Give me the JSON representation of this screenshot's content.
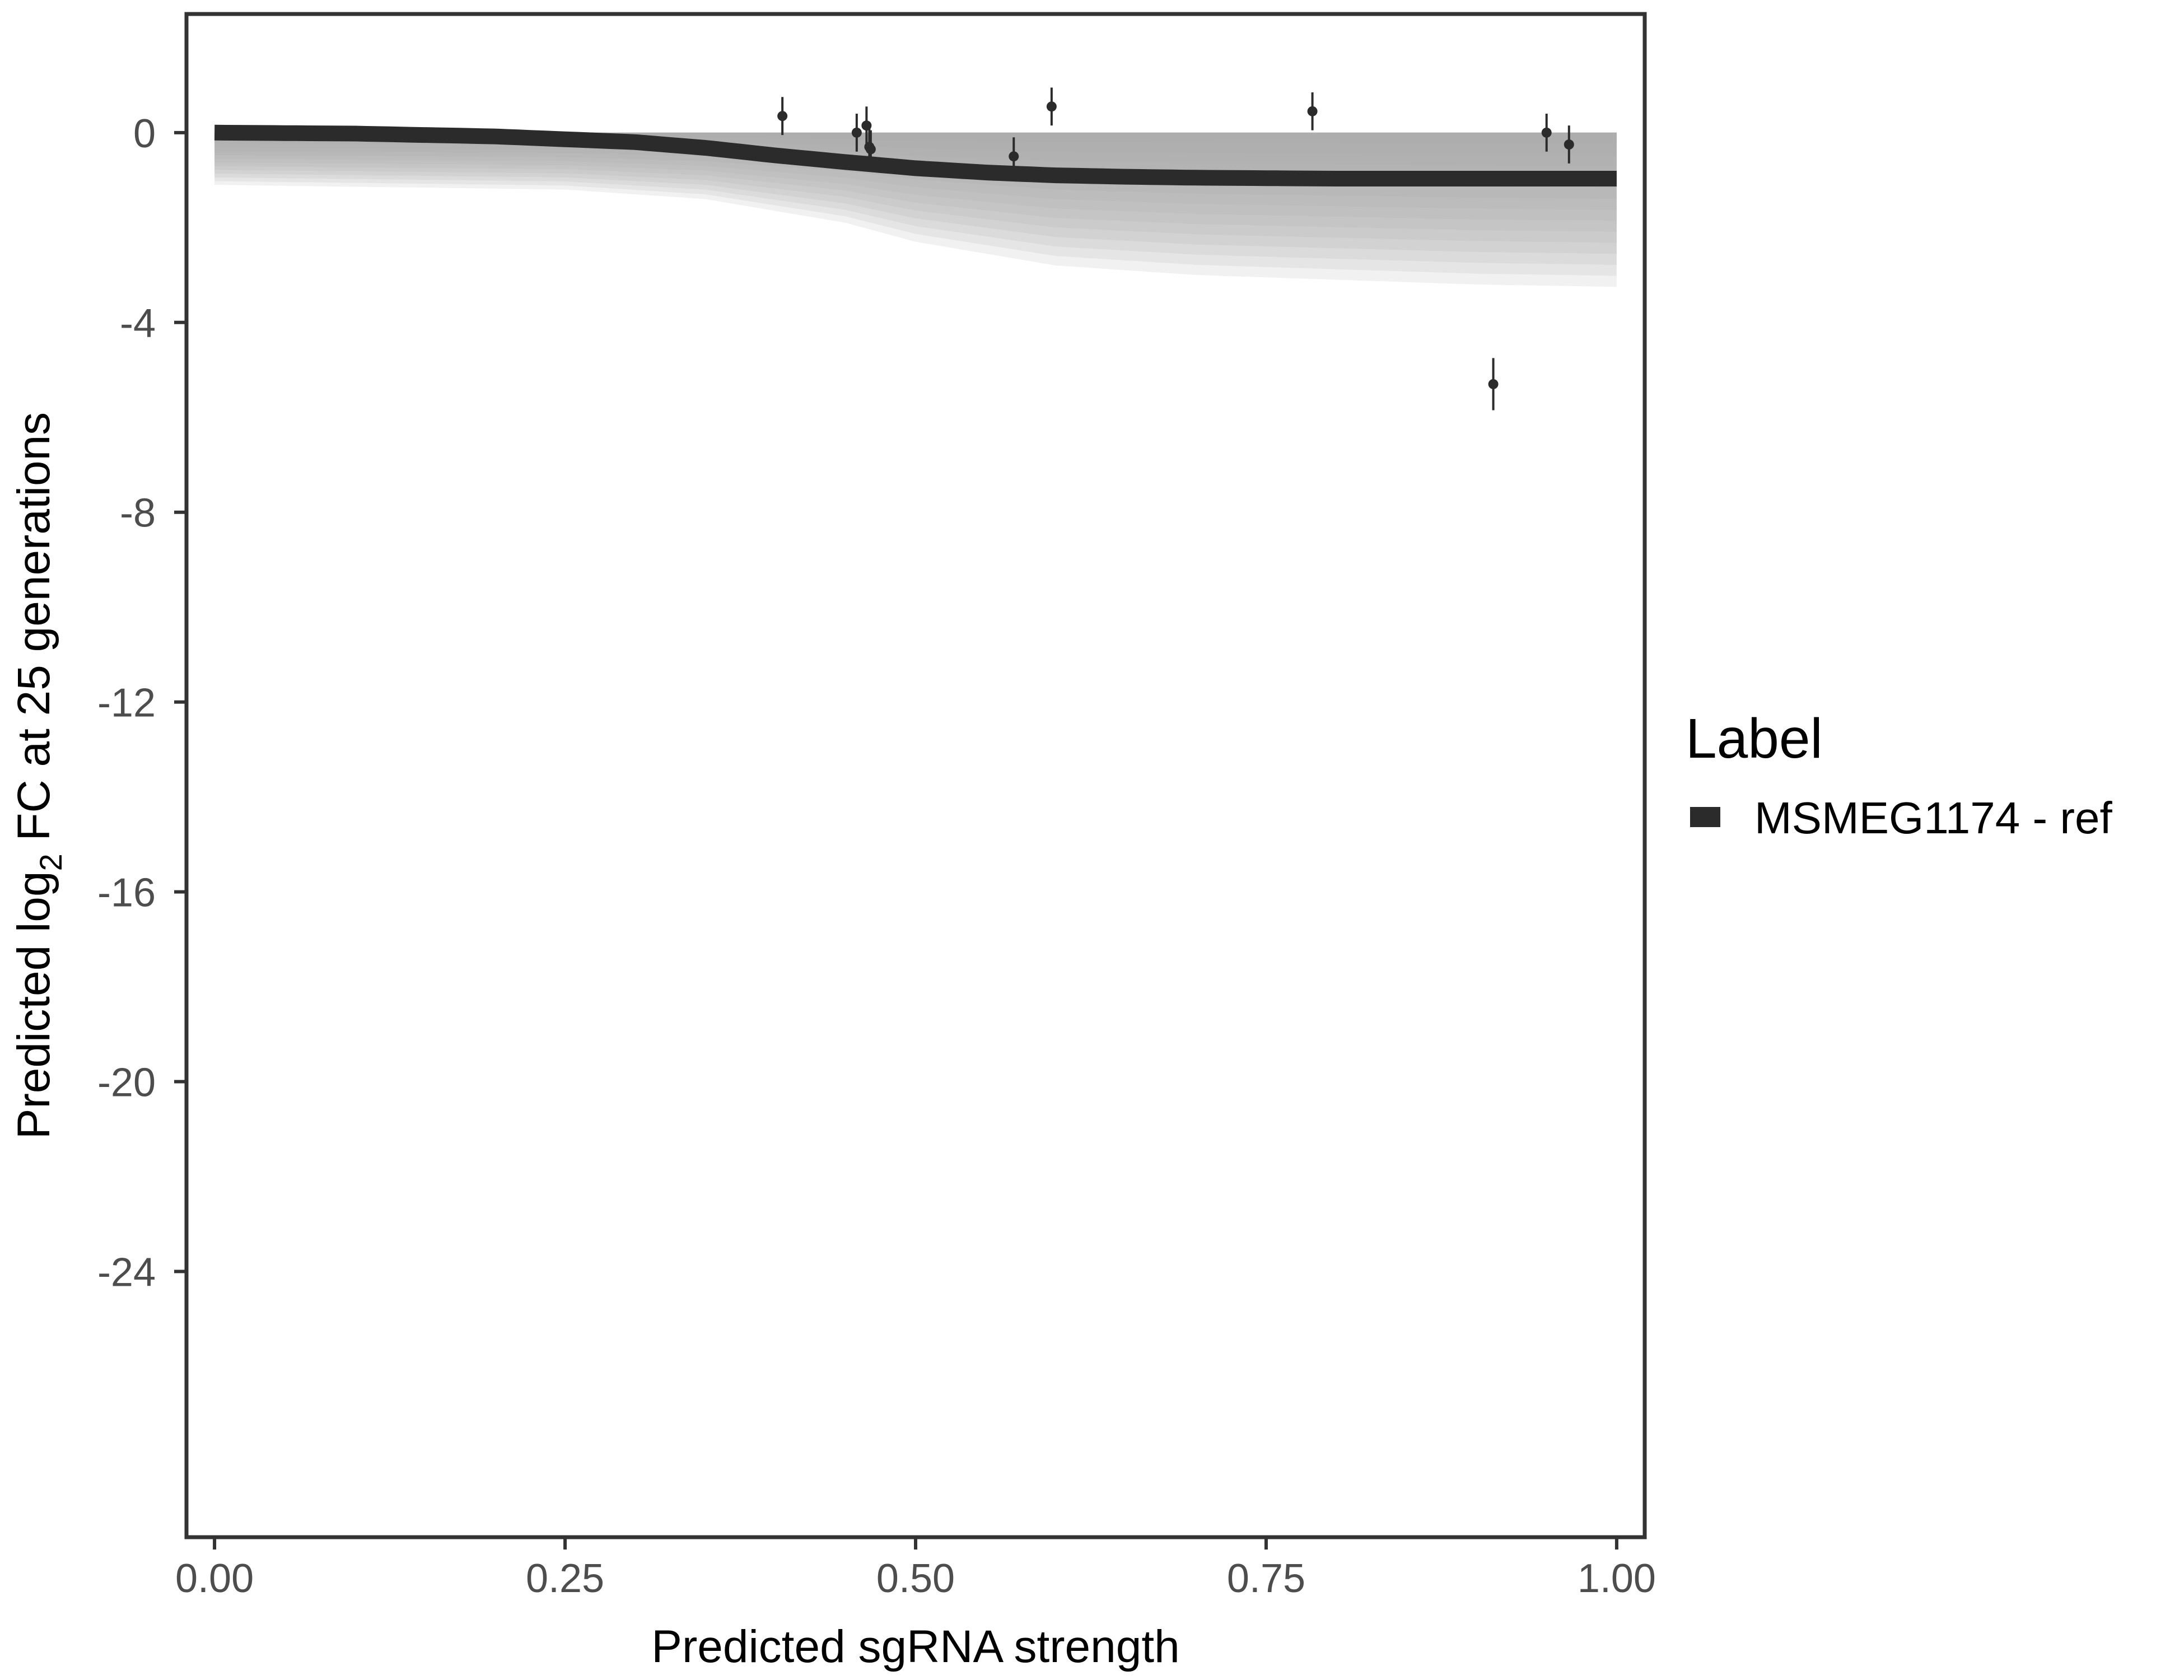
{
  "chart_data": {
    "type": "line",
    "xlabel": "Predicted sgRNA strength",
    "ylabel_prefix": "Predicted  log",
    "ylabel_sub": "2",
    "ylabel_suffix": " FC at 25 generations",
    "xlim": [
      -0.02,
      1.02
    ],
    "ylim": [
      -29.6,
      2.5
    ],
    "xticks": [
      0,
      0.25,
      0.5,
      0.75,
      1.0
    ],
    "xtick_labels": [
      "0.00",
      "0.25",
      "0.50",
      "0.75",
      "1.00"
    ],
    "yticks": [
      0,
      -4,
      -8,
      -12,
      -16,
      -20,
      -24
    ],
    "ytick_labels": [
      "0",
      "-4",
      "-8",
      "-12",
      "-16",
      "-20",
      "-24"
    ],
    "grid": false,
    "legend": {
      "title": "Label",
      "position": "right",
      "entries": [
        {
          "label": "MSMEG1174 - ref",
          "color": "#2b2b2b"
        }
      ]
    },
    "fit_curve": {
      "name": "MSMEG1174 - ref",
      "color": "#2b2b2b",
      "x": [
        0,
        0.1,
        0.2,
        0.3,
        0.35,
        0.4,
        0.45,
        0.5,
        0.55,
        0.6,
        0.65,
        0.7,
        0.75,
        0.8,
        0.9,
        1.0
      ],
      "y": [
        0,
        -0.02,
        -0.08,
        -0.2,
        -0.32,
        -0.48,
        -0.62,
        -0.75,
        -0.84,
        -0.9,
        -0.93,
        -0.95,
        -0.96,
        -0.97,
        -0.97,
        -0.97
      ]
    },
    "posterior_band": {
      "color": "#a6a6a6",
      "x": [
        0,
        0.25,
        0.35,
        0.45,
        0.5,
        0.6,
        0.7,
        0.8,
        0.9,
        1.0
      ],
      "upper": [
        0,
        0,
        0,
        0,
        0,
        0,
        0,
        0,
        0,
        0
      ],
      "lower": [
        -1.1,
        -1.2,
        -1.4,
        -1.9,
        -2.3,
        -2.8,
        -3.0,
        -3.1,
        -3.2,
        -3.25
      ]
    },
    "points": [
      {
        "x": 0.405,
        "y": 0.35,
        "err": 0.4
      },
      {
        "x": 0.458,
        "y": 0.0,
        "err": 0.4
      },
      {
        "x": 0.465,
        "y": 0.15,
        "err": 0.4
      },
      {
        "x": 0.467,
        "y": -0.3,
        "err": 0.4
      },
      {
        "x": 0.468,
        "y": -0.35,
        "err": 0.4
      },
      {
        "x": 0.57,
        "y": -0.5,
        "err": 0.4
      },
      {
        "x": 0.597,
        "y": 0.55,
        "err": 0.4
      },
      {
        "x": 0.783,
        "y": 0.45,
        "err": 0.4
      },
      {
        "x": 0.912,
        "y": -5.3,
        "err": 0.55
      },
      {
        "x": 0.95,
        "y": 0.0,
        "err": 0.4
      },
      {
        "x": 0.966,
        "y": -0.25,
        "err": 0.4
      }
    ]
  }
}
